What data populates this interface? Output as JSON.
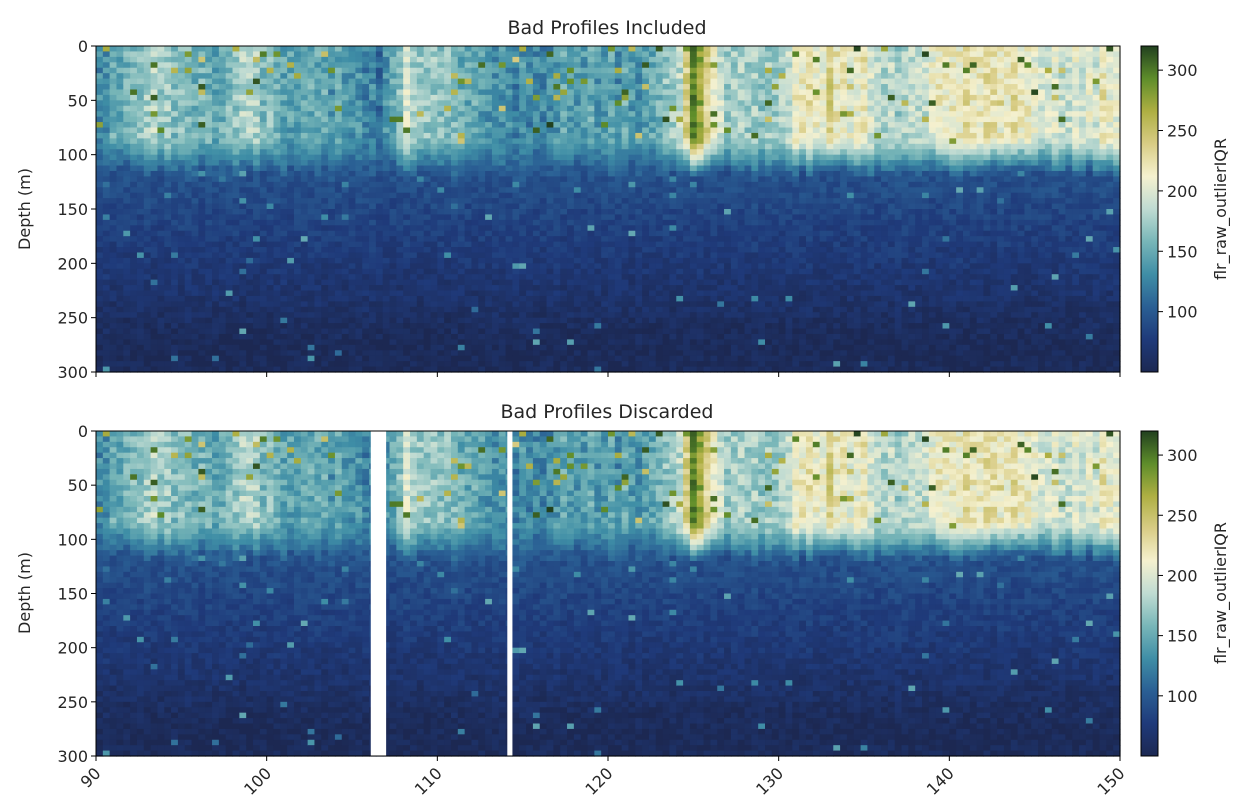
{
  "figure": {
    "background": "#ffffff"
  },
  "colormap": {
    "name": "delta-like",
    "stops": [
      "#1c2852",
      "#1f3a7a",
      "#2a5f94",
      "#3f8ea6",
      "#78b6b8",
      "#bfdbd2",
      "#f5f1cf",
      "#d8cc85",
      "#aeaf42",
      "#5e8d2a",
      "#21401f"
    ]
  },
  "chart_data": [
    {
      "type": "heatmap",
      "title": "Bad Profiles Included",
      "xlabel": "",
      "ylabel": "Depth (m)",
      "xlim": [
        90,
        150
      ],
      "ylim": [
        300,
        0
      ],
      "xticks": [
        90,
        100,
        110,
        120,
        130,
        140,
        150
      ],
      "yticks": [
        0,
        50,
        100,
        150,
        200,
        250,
        300
      ],
      "show_xtick_labels": false,
      "colorbar": {
        "label": "flr_raw_outlierIQR",
        "range": [
          50,
          320
        ],
        "ticks": [
          100,
          150,
          200,
          250,
          300
        ]
      },
      "gaps": [],
      "surface_layer_depth_m": [
        90,
        100
      ],
      "surface_values_by_x": [
        [
          90,
          140
        ],
        [
          92,
          150
        ],
        [
          93,
          190
        ],
        [
          95,
          160
        ],
        [
          97,
          150
        ],
        [
          99,
          180
        ],
        [
          101,
          155
        ],
        [
          103,
          150
        ],
        [
          105,
          140
        ],
        [
          106,
          120
        ],
        [
          107,
          125
        ],
        [
          108,
          190
        ],
        [
          110,
          175
        ],
        [
          112,
          150
        ],
        [
          114,
          140
        ],
        [
          116,
          120
        ],
        [
          118,
          150
        ],
        [
          120,
          135
        ],
        [
          122,
          145
        ],
        [
          124,
          170
        ],
        [
          125,
          280
        ],
        [
          127,
          180
        ],
        [
          129,
          160
        ],
        [
          131,
          210
        ],
        [
          133,
          225
        ],
        [
          135,
          215
        ],
        [
          137,
          170
        ],
        [
          139,
          200
        ],
        [
          141,
          230
        ],
        [
          143,
          225
        ],
        [
          145,
          210
        ],
        [
          147,
          190
        ],
        [
          149,
          210
        ],
        [
          150,
          210
        ]
      ],
      "deep_value_range": [
        55,
        100
      ]
    },
    {
      "type": "heatmap",
      "title": "Bad Profiles Discarded",
      "xlabel": "",
      "ylabel": "Depth (m)",
      "xlim": [
        90,
        150
      ],
      "ylim": [
        300,
        0
      ],
      "xticks": [
        90,
        100,
        110,
        120,
        130,
        140,
        150
      ],
      "yticks": [
        0,
        50,
        100,
        150,
        200,
        250,
        300
      ],
      "show_xtick_labels": true,
      "colorbar": {
        "label": "flr_raw_outlierIQR",
        "range": [
          50,
          320
        ],
        "ticks": [
          100,
          150,
          200,
          250,
          300
        ]
      },
      "gaps": [
        [
          106.1,
          107.0
        ],
        [
          114.1,
          114.4
        ]
      ],
      "surface_layer_depth_m": [
        90,
        100
      ],
      "surface_values_by_x": [
        [
          90,
          140
        ],
        [
          92,
          150
        ],
        [
          93,
          190
        ],
        [
          95,
          160
        ],
        [
          97,
          150
        ],
        [
          99,
          180
        ],
        [
          101,
          155
        ],
        [
          103,
          150
        ],
        [
          105,
          140
        ],
        [
          106,
          120
        ],
        [
          107,
          125
        ],
        [
          108,
          190
        ],
        [
          110,
          175
        ],
        [
          112,
          150
        ],
        [
          114,
          140
        ],
        [
          116,
          120
        ],
        [
          118,
          150
        ],
        [
          120,
          135
        ],
        [
          122,
          145
        ],
        [
          124,
          170
        ],
        [
          125,
          280
        ],
        [
          127,
          180
        ],
        [
          129,
          160
        ],
        [
          131,
          210
        ],
        [
          133,
          225
        ],
        [
          135,
          215
        ],
        [
          137,
          170
        ],
        [
          139,
          200
        ],
        [
          141,
          230
        ],
        [
          143,
          225
        ],
        [
          145,
          210
        ],
        [
          147,
          190
        ],
        [
          149,
          210
        ],
        [
          150,
          210
        ]
      ],
      "deep_value_range": [
        55,
        100
      ]
    }
  ]
}
